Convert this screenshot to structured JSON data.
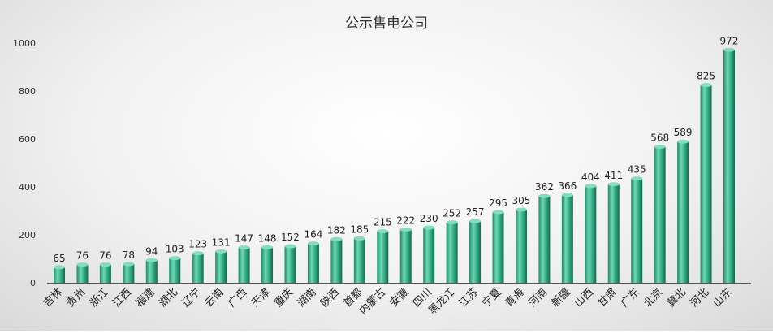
{
  "chart_data": {
    "type": "bar",
    "title": "公示售电公司",
    "categories": [
      "吉林",
      "贵州",
      "浙江",
      "江西",
      "福建",
      "湖北",
      "辽宁",
      "云南",
      "广西",
      "天津",
      "重庆",
      "湖南",
      "陕西",
      "首都",
      "内蒙古",
      "安徽",
      "四川",
      "黑龙江",
      "江苏",
      "宁夏",
      "青海",
      "河南",
      "新疆",
      "山西",
      "甘肃",
      "广东",
      "北京",
      "冀北",
      "河北",
      "山东"
    ],
    "values": [
      65,
      76,
      76,
      78,
      94,
      103,
      123,
      131,
      147,
      148,
      152,
      164,
      182,
      185,
      215,
      222,
      230,
      252,
      257,
      295,
      305,
      362,
      366,
      404,
      411,
      435,
      568,
      589,
      825,
      972
    ],
    "ylim": [
      0,
      1000
    ],
    "yticks": [
      0,
      200,
      400,
      600,
      800,
      1000
    ],
    "xlabel": "",
    "ylabel": "",
    "grid": false,
    "legend": "none",
    "bar_color": "#2aa57f",
    "bar_highlight": "#6fd8b4"
  }
}
